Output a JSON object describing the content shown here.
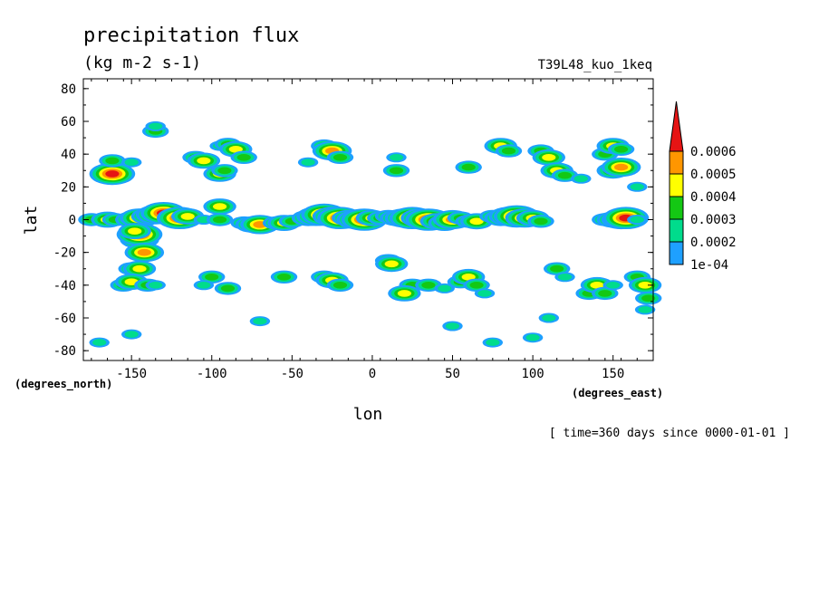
{
  "chart_data": {
    "type": "heatmap",
    "title": "precipitation flux",
    "units": "(kg m-2 s-1)",
    "run_label": "T39L48_kuo_1keq",
    "xlabel": "lon",
    "ylabel": "lat",
    "x_units": "(degrees_east)",
    "y_units": "(degrees_north)",
    "xlim": [
      -180,
      175
    ],
    "ylim": [
      -86,
      86
    ],
    "x_ticks": [
      -150,
      -100,
      -50,
      0,
      50,
      100,
      150
    ],
    "y_ticks": [
      80,
      60,
      40,
      20,
      0,
      -20,
      -40,
      -60,
      -80
    ],
    "x_tick_labels": [
      "-150",
      "-100",
      "-50",
      "0",
      "50",
      "100",
      "150"
    ],
    "y_tick_labels": [
      "80",
      "60",
      "40",
      "20",
      "0",
      "-20",
      "-40",
      "-60",
      "-80"
    ],
    "levels": [
      0.0001,
      0.0002,
      0.0003,
      0.0004,
      0.0005,
      0.0006
    ],
    "level_labels": [
      "1e-04",
      "0.0002",
      "0.0003",
      "0.0004",
      "0.0005",
      "0.0006"
    ],
    "level_colors": [
      "#1ea0ff",
      "#00dc8c",
      "#14c814",
      "#ffff00",
      "#ff9600",
      "#e61414"
    ],
    "colorbar_overflow": "top",
    "time_note": "[ time=360 days since 0000-01-01 ]",
    "cells": [
      [
        -175,
        0,
        2
      ],
      [
        -165,
        0,
        3
      ],
      [
        -160,
        0,
        2
      ],
      [
        -150,
        0,
        3
      ],
      [
        -145,
        1,
        4
      ],
      [
        -140,
        2,
        3
      ],
      [
        -135,
        3,
        4
      ],
      [
        -130,
        4,
        5
      ],
      [
        -125,
        2,
        2
      ],
      [
        -120,
        1,
        5
      ],
      [
        -115,
        2,
        3
      ],
      [
        -105,
        0,
        1
      ],
      [
        -95,
        0,
        2
      ],
      [
        -80,
        -2,
        2
      ],
      [
        -75,
        -3,
        3
      ],
      [
        -70,
        -3,
        4
      ],
      [
        -60,
        -2,
        2
      ],
      [
        -55,
        -2,
        3
      ],
      [
        -50,
        -1,
        2
      ],
      [
        -40,
        1,
        3
      ],
      [
        -35,
        2,
        4
      ],
      [
        -30,
        3,
        5
      ],
      [
        -25,
        2,
        4
      ],
      [
        -20,
        1,
        5
      ],
      [
        -15,
        1,
        3
      ],
      [
        -10,
        0,
        4
      ],
      [
        -5,
        0,
        5
      ],
      [
        0,
        1,
        3
      ],
      [
        5,
        1,
        2
      ],
      [
        10,
        2,
        2
      ],
      [
        15,
        1,
        3
      ],
      [
        20,
        1,
        4
      ],
      [
        25,
        1,
        5
      ],
      [
        30,
        1,
        4
      ],
      [
        35,
        0,
        5
      ],
      [
        40,
        -1,
        3
      ],
      [
        45,
        -2,
        3
      ],
      [
        50,
        0,
        4
      ],
      [
        55,
        1,
        2
      ],
      [
        60,
        -1,
        2
      ],
      [
        65,
        -1,
        3
      ],
      [
        75,
        2,
        2
      ],
      [
        80,
        1,
        3
      ],
      [
        85,
        2,
        4
      ],
      [
        90,
        2,
        5
      ],
      [
        95,
        1,
        4
      ],
      [
        100,
        1,
        3
      ],
      [
        105,
        -1,
        2
      ],
      [
        145,
        0,
        2
      ],
      [
        150,
        0,
        3
      ],
      [
        155,
        0,
        4
      ],
      [
        158,
        1,
        5
      ],
      [
        165,
        0,
        1
      ],
      [
        -160,
        30,
        3
      ],
      [
        -162,
        28,
        5
      ],
      [
        -162,
        36,
        2
      ],
      [
        -150,
        35,
        1
      ],
      [
        -135,
        54,
        2
      ],
      [
        -135,
        57,
        1
      ],
      [
        -110,
        38,
        2
      ],
      [
        -105,
        36,
        3
      ],
      [
        -95,
        45,
        1
      ],
      [
        -90,
        46,
        2
      ],
      [
        -85,
        43,
        3
      ],
      [
        -80,
        38,
        2
      ],
      [
        -95,
        28,
        3
      ],
      [
        -92,
        30,
        2
      ],
      [
        -95,
        8,
        3
      ],
      [
        -30,
        45,
        2
      ],
      [
        -25,
        42,
        4
      ],
      [
        -20,
        38,
        2
      ],
      [
        -40,
        35,
        1
      ],
      [
        15,
        38,
        1
      ],
      [
        15,
        30,
        2
      ],
      [
        60,
        32,
        2
      ],
      [
        80,
        45,
        3
      ],
      [
        85,
        42,
        2
      ],
      [
        105,
        42,
        2
      ],
      [
        110,
        38,
        3
      ],
      [
        115,
        30,
        3
      ],
      [
        120,
        27,
        2
      ],
      [
        130,
        25,
        1
      ],
      [
        145,
        40,
        2
      ],
      [
        150,
        45,
        3
      ],
      [
        155,
        43,
        2
      ],
      [
        150,
        30,
        3
      ],
      [
        155,
        32,
        4
      ],
      [
        165,
        20,
        1
      ],
      [
        -145,
        -12,
        4
      ],
      [
        -145,
        -9,
        5
      ],
      [
        -148,
        -7,
        3
      ],
      [
        -145,
        -20,
        2
      ],
      [
        -142,
        -20,
        4
      ],
      [
        -150,
        -30,
        2
      ],
      [
        -145,
        -30,
        3
      ],
      [
        -155,
        -40,
        2
      ],
      [
        -150,
        -38,
        3
      ],
      [
        -140,
        -40,
        2
      ],
      [
        -135,
        -40,
        1
      ],
      [
        -100,
        -35,
        2
      ],
      [
        -105,
        -40,
        1
      ],
      [
        -90,
        -42,
        2
      ],
      [
        -55,
        -35,
        2
      ],
      [
        -30,
        -35,
        2
      ],
      [
        -25,
        -37,
        3
      ],
      [
        -20,
        -40,
        2
      ],
      [
        10,
        -25,
        2
      ],
      [
        12,
        -27,
        3
      ],
      [
        25,
        -40,
        2
      ],
      [
        20,
        -45,
        3
      ],
      [
        35,
        -40,
        2
      ],
      [
        45,
        -42,
        1
      ],
      [
        55,
        -38,
        2
      ],
      [
        60,
        -35,
        3
      ],
      [
        65,
        -40,
        2
      ],
      [
        70,
        -45,
        1
      ],
      [
        115,
        -30,
        2
      ],
      [
        120,
        -35,
        1
      ],
      [
        135,
        -45,
        2
      ],
      [
        140,
        -40,
        3
      ],
      [
        145,
        -45,
        2
      ],
      [
        150,
        -40,
        1
      ],
      [
        165,
        -35,
        2
      ],
      [
        170,
        -40,
        3
      ],
      [
        172,
        -48,
        2
      ],
      [
        170,
        -55,
        1
      ],
      [
        -170,
        -75,
        1
      ],
      [
        -150,
        -70,
        1
      ],
      [
        -70,
        -62,
        1
      ],
      [
        50,
        -65,
        1
      ],
      [
        75,
        -75,
        1
      ],
      [
        100,
        -72,
        1
      ],
      [
        110,
        -60,
        1
      ]
    ]
  }
}
